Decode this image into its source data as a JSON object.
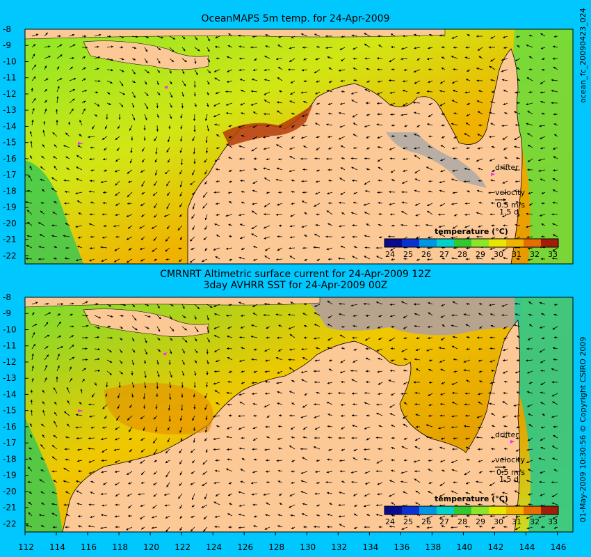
{
  "panels": [
    {
      "title_lines": [
        "OceanMAPS 5m temp. for 24-Apr-2009"
      ],
      "side_label": "ocean_fc_20090423_024"
    },
    {
      "title_lines": [
        "CMRNRT Altimetric surface current for 24-Apr-2009 12Z",
        "3day AVHRR SST for 24-Apr-2009 00Z"
      ],
      "side_label": "01-May-2009 10:30:56    © Copyright CSIRO 2009"
    }
  ],
  "legend": {
    "drifter": "drifter",
    "velocity": "velocity",
    "speed": "0.5 m/s",
    "duration": "1.5 d"
  },
  "colorbar": {
    "title": "temperature (°C)",
    "ticks": [
      "24",
      "25",
      "26",
      "27",
      "28",
      "29",
      "30",
      "31",
      "32",
      "33"
    ],
    "colors": [
      "#0a0a8c",
      "#0a32d2",
      "#0096e6",
      "#00d2c8",
      "#32c832",
      "#8ce628",
      "#e6e600",
      "#f0b400",
      "#e66e00",
      "#a01e0a"
    ]
  },
  "axes": {
    "lat_ticks": [
      "-8",
      "-9",
      "-10",
      "-11",
      "-12",
      "-13",
      "-14",
      "-15",
      "-16",
      "-17",
      "-18",
      "-19",
      "-20",
      "-21",
      "-22"
    ],
    "lon_ticks": [
      "112",
      "114",
      "116",
      "118",
      "120",
      "122",
      "124",
      "126",
      "128",
      "130",
      "132",
      "134",
      "136",
      "138",
      "140",
      "142",
      "144",
      "146"
    ]
  },
  "colors": {
    "background": "#00c8ff",
    "land": "#fcc896",
    "shelf": "#a8a8a8",
    "contour": "#48d6d0",
    "drifter": "#ff20ff"
  }
}
